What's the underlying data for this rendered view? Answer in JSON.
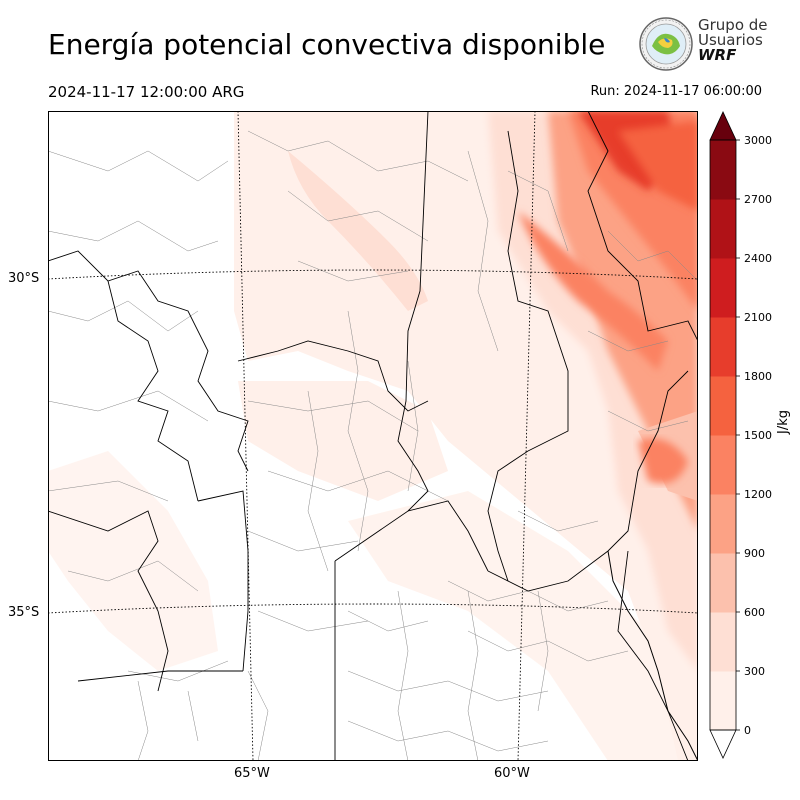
{
  "title": "Energía potencial convectiva disponible",
  "valid_time": "2024-11-17 12:00:00 ARG",
  "run_time": "Run: 2024-11-17 06:00:00",
  "logo": {
    "line1": "Grupo de",
    "line2": "Usuarios",
    "line3": "WRF"
  },
  "lat_labels": [
    "30°S",
    "35°S"
  ],
  "lon_labels": [
    "65°W",
    "60°W"
  ],
  "colorbar": {
    "label": "J/kg",
    "ticks": [
      "0",
      "300",
      "600",
      "900",
      "1200",
      "1500",
      "1800",
      "2100",
      "2400",
      "2700",
      "3000"
    ],
    "colors": [
      "#fff0ea",
      "#fedfd4",
      "#fcc1ad",
      "#fca285",
      "#fb8262",
      "#f5623f",
      "#e73d2c",
      "#cf1d1f",
      "#b01217",
      "#8a0a12",
      "#67000d"
    ]
  },
  "map_colors": {
    "border": "#000000",
    "admin": "#888888",
    "grid": "#000000"
  }
}
